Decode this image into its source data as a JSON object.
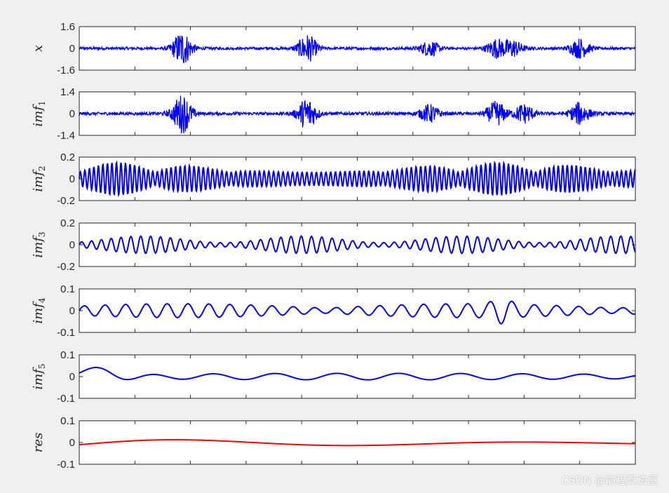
{
  "watermark": "CSDN @前程算法屋",
  "colors": {
    "imf": "#0000ff",
    "res": "#ff0000",
    "axes": "#262626",
    "plot_bg": "#ffffff",
    "figure_bg": "#f0f0f0"
  },
  "chart_data": [
    {
      "type": "line",
      "ylabel": "x",
      "ylabel_sub": "",
      "yticks": [
        "1.6",
        "0",
        "-1.6"
      ],
      "ylim": [
        -1.6,
        1.6
      ],
      "series_color": "blue",
      "amplitude_peak": 1.25,
      "bursts": [
        [
          0.185,
          1.25
        ],
        [
          0.41,
          1.0
        ],
        [
          0.63,
          0.55
        ],
        [
          0.75,
          0.65
        ],
        [
          0.78,
          0.6
        ],
        [
          0.9,
          0.7
        ]
      ]
    },
    {
      "type": "line",
      "ylabel": "imf",
      "ylabel_sub": "1",
      "yticks": [
        "1.4",
        "0",
        "-1.4"
      ],
      "ylim": [
        -1.4,
        1.4
      ],
      "series_color": "blue",
      "amplitude_peak": 1.2,
      "bursts": [
        [
          0.185,
          1.2
        ],
        [
          0.41,
          1.0
        ],
        [
          0.63,
          0.55
        ],
        [
          0.75,
          0.75
        ],
        [
          0.8,
          0.6
        ],
        [
          0.9,
          0.7
        ]
      ]
    },
    {
      "type": "line",
      "ylabel": "imf",
      "ylabel_sub": "2",
      "yticks": [
        "0.2",
        "0",
        "-0.2"
      ],
      "ylim": [
        -0.2,
        0.2
      ],
      "series_color": "blue",
      "amplitude_peak": 0.18
    },
    {
      "type": "line",
      "ylabel": "imf",
      "ylabel_sub": "3",
      "yticks": [
        "0.2",
        "0",
        "-0.2"
      ],
      "ylim": [
        -0.2,
        0.2
      ],
      "series_color": "blue",
      "amplitude_peak": 0.1
    },
    {
      "type": "line",
      "ylabel": "imf",
      "ylabel_sub": "4",
      "yticks": [
        "0.1",
        "0",
        "-0.1"
      ],
      "ylim": [
        -0.1,
        0.1
      ],
      "series_color": "blue",
      "amplitude_peak": 0.05
    },
    {
      "type": "line",
      "ylabel": "imf",
      "ylabel_sub": "5",
      "yticks": [
        "0.1",
        "0",
        "-0.1"
      ],
      "ylim": [
        -0.1,
        0.1
      ],
      "series_color": "blue",
      "amplitude_peak": 0.055
    },
    {
      "type": "line",
      "ylabel": "res",
      "ylabel_sub": "",
      "yticks": [
        "0.1",
        "0",
        "-0.1"
      ],
      "ylim": [
        -0.1,
        0.1
      ],
      "series_color": "red",
      "amplitude_peak": 0.028
    }
  ]
}
